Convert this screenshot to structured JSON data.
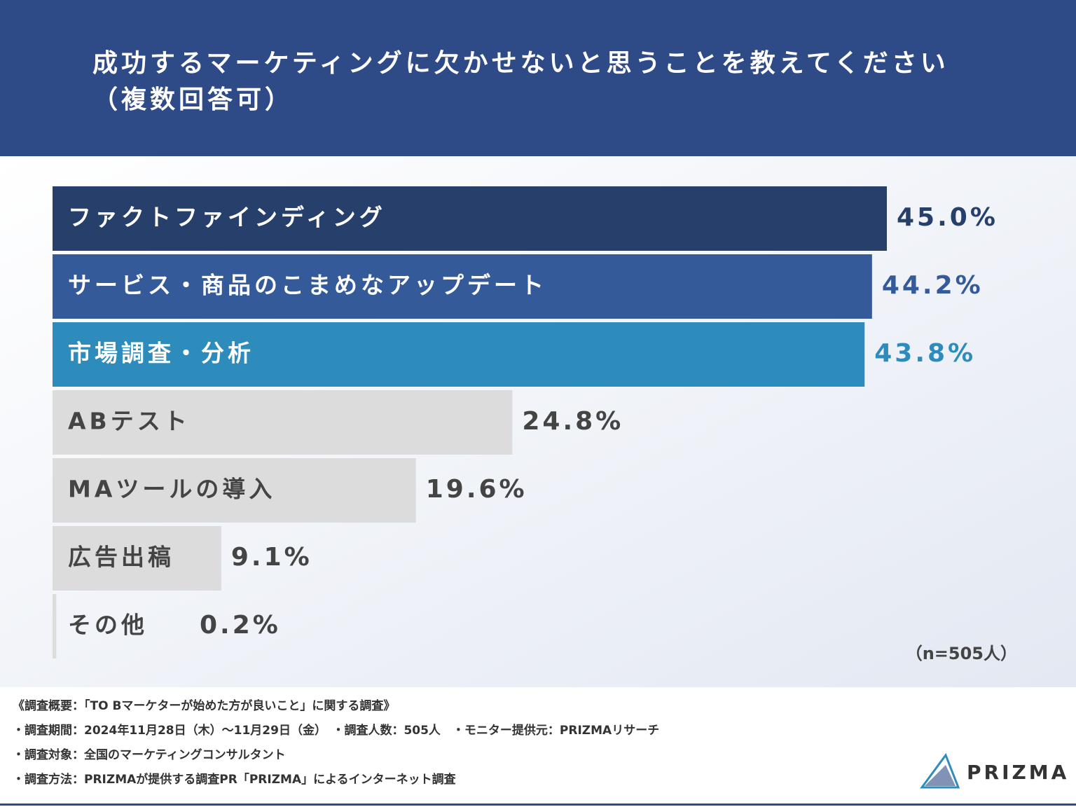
{
  "chart_data": {
    "type": "hbar",
    "title": "成功するマーケティングに欠かせないと思うことを教えてください",
    "subtitle": "（複数回答可）",
    "categories": [
      "ファクトファインディング",
      "サービス・商品のこまめなアップデート",
      "市場調査・分析",
      "ABテスト",
      "MAツールの導入",
      "広告出稿",
      "その他"
    ],
    "values": [
      45.0,
      44.2,
      43.8,
      24.8,
      19.6,
      9.1,
      0.2
    ],
    "value_labels": [
      "45.0%",
      "44.2%",
      "43.8%",
      "24.8%",
      "19.6%",
      "9.1%",
      "0.2%"
    ],
    "colors": [
      "#263f6b",
      "#355a9a",
      "#2e8cbd",
      "#dcdcdc",
      "#dcdcdc",
      "#dcdcdc",
      "#dcdcdc"
    ],
    "text_colors": [
      "#ffffff",
      "#ffffff",
      "#ffffff",
      "#444444",
      "#444444",
      "#444444",
      "#444444"
    ],
    "value_label_colors": [
      "#263f6b",
      "#355a9a",
      "#2e8cbd",
      "#444444",
      "#444444",
      "#444444",
      "#444444"
    ],
    "note": "（n=505人）"
  },
  "footer": {
    "lines": [
      "《調査概要：「TO Bマーケターが始めた方が良いこと」に関する調査》",
      "・調査期間：2024年11月28日（木）～11月29日（金）　・調査人数：505人　・モニター提供元：PRIZMAリサーチ",
      "・調査対象：全国のマーケティングコンサルタント",
      "・調査方法：PRIZMAが提供する調査PR「PRIZMA」によるインターネット調査"
    ],
    "logo": "PRIZMA"
  }
}
